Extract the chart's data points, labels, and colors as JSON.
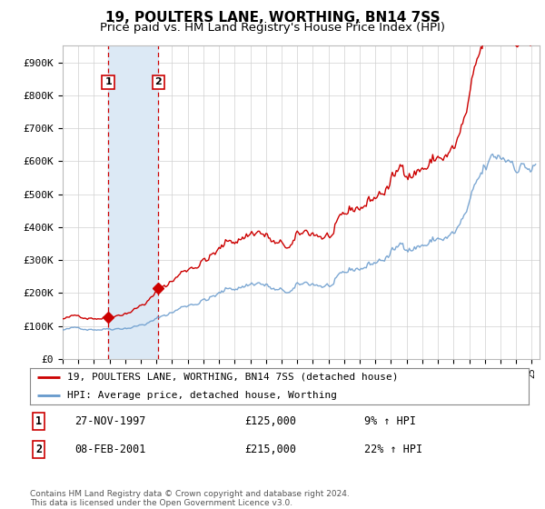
{
  "title": "19, POULTERS LANE, WORTHING, BN14 7SS",
  "subtitle": "Price paid vs. HM Land Registry's House Price Index (HPI)",
  "title_fontsize": 11,
  "subtitle_fontsize": 9.5,
  "sale1_date": 1997.91,
  "sale1_label": "1",
  "sale1_price": 125000,
  "sale1_text": "27-NOV-1997",
  "sale1_pct": "9% ↑ HPI",
  "sale2_date": 2001.12,
  "sale2_label": "2",
  "sale2_price": 215000,
  "sale2_text": "08-FEB-2001",
  "sale2_pct": "22% ↑ HPI",
  "hpi_color": "#6699cc",
  "price_color": "#cc0000",
  "marker_color": "#cc0000",
  "shade_color": "#dce9f5",
  "vline_color": "#cc0000",
  "yticks": [
    0,
    100000,
    200000,
    300000,
    400000,
    500000,
    600000,
    700000,
    800000,
    900000
  ],
  "ytick_labels": [
    "£0",
    "£100K",
    "£200K",
    "£300K",
    "£400K",
    "£500K",
    "£600K",
    "£700K",
    "£800K",
    "£900K"
  ],
  "xmin": 1995.0,
  "xmax": 2025.5,
  "ymin": 0,
  "ymax": 950000,
  "legend_label1": "19, POULTERS LANE, WORTHING, BN14 7SS (detached house)",
  "legend_label2": "HPI: Average price, detached house, Worthing",
  "footer": "Contains HM Land Registry data © Crown copyright and database right 2024.\nThis data is licensed under the Open Government Licence v3.0.",
  "background_color": "#ffffff",
  "plot_bg_color": "#ffffff"
}
